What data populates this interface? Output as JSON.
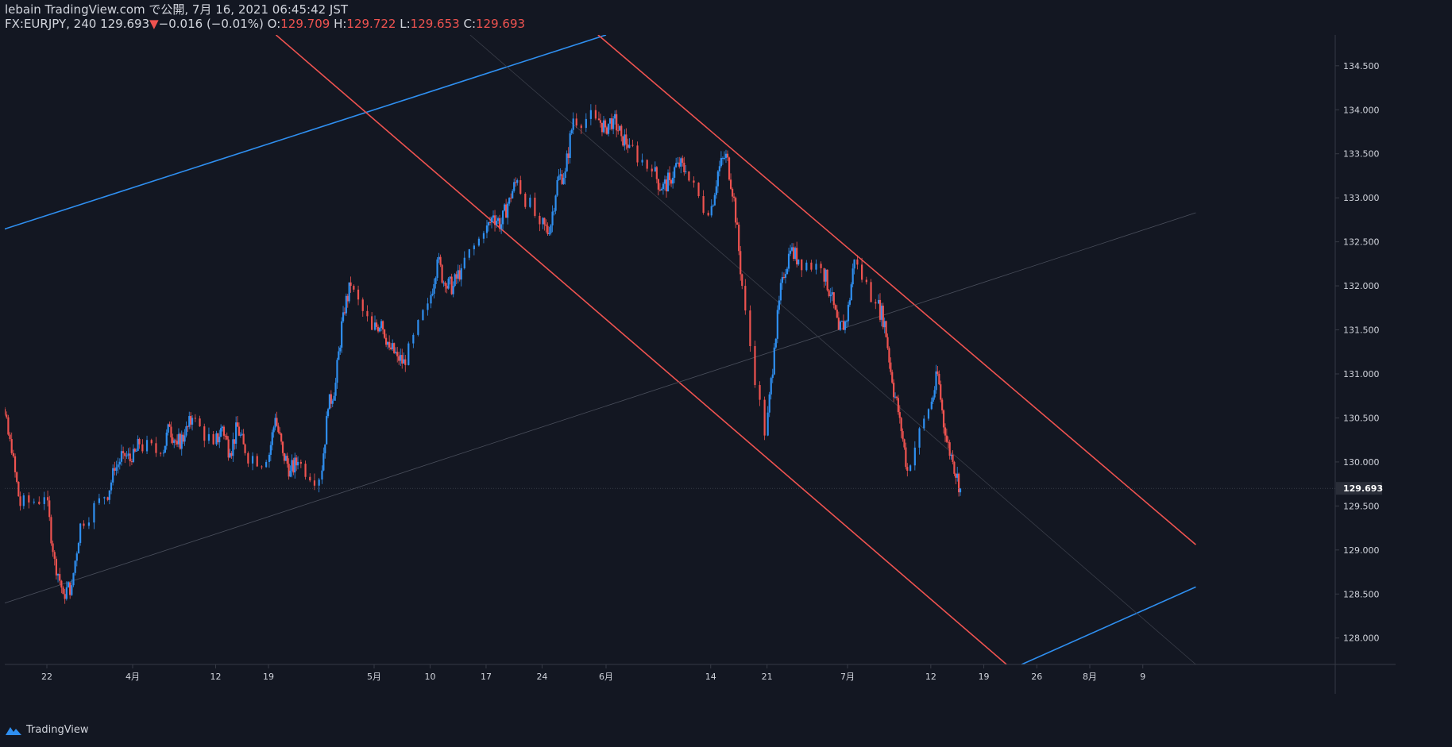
{
  "header": {
    "publish_line": "lebain TradingView.com で公開, 7月 16, 2021 06:45:42 JST",
    "symbol": "FX:EURJPY, 240",
    "last": "129.693",
    "change_arrow": "▼",
    "change": "−0.016 (−0.01%)",
    "o_label": "O:",
    "o_value": "129.709",
    "h_label": "H:",
    "h_value": "129.722",
    "l_label": "L:",
    "l_value": "129.653",
    "c_label": "C:",
    "c_value": "129.693"
  },
  "footer": {
    "brand": "TradingView"
  },
  "colors": {
    "background": "#131722",
    "up": "#2f8ff0",
    "down": "#ef5350",
    "grid_text": "#d1d4dc",
    "axis_line": "#363a45"
  },
  "chart_data": {
    "type": "candlestick",
    "symbol": "FX:EURJPY",
    "timeframe": "240",
    "y_axis": {
      "ticks": [
        128.0,
        128.5,
        129.0,
        129.5,
        130.0,
        130.5,
        131.0,
        131.5,
        132.0,
        132.5,
        133.0,
        133.5,
        134.0,
        134.5
      ],
      "tick_labels": [
        "128.000",
        "128.500",
        "129.000",
        "129.500",
        "130.000",
        "130.500",
        "131.000",
        "131.500",
        "132.000",
        "132.500",
        "133.000",
        "133.500",
        "134.000",
        "134.500"
      ],
      "range": [
        127.7,
        134.85
      ],
      "last_price_label": "129.693"
    },
    "x_axis": {
      "ticks": [
        {
          "label": "22",
          "date": "2021-03-22"
        },
        {
          "label": "4月",
          "date": "2021-04-01"
        },
        {
          "label": "12",
          "date": "2021-04-12"
        },
        {
          "label": "19",
          "date": "2021-04-19"
        },
        {
          "label": "5月",
          "date": "2021-05-03"
        },
        {
          "label": "10",
          "date": "2021-05-10"
        },
        {
          "label": "17",
          "date": "2021-05-17"
        },
        {
          "label": "24",
          "date": "2021-05-24"
        },
        {
          "label": "6月",
          "date": "2021-06-01"
        },
        {
          "label": "14",
          "date": "2021-06-14"
        },
        {
          "label": "21",
          "date": "2021-06-21"
        },
        {
          "label": "7月",
          "date": "2021-07-01"
        },
        {
          "label": "12",
          "date": "2021-07-12"
        },
        {
          "label": "19",
          "date": "2021-07-19"
        },
        {
          "label": "26",
          "date": "2021-07-26"
        },
        {
          "label": "8月",
          "date": "2021-08-02"
        },
        {
          "label": "9",
          "date": "2021-08-09"
        }
      ]
    },
    "price_path": [
      {
        "date": "2021-03-15",
        "close": 130.3
      },
      {
        "date": "2021-03-16",
        "close": 129.8
      },
      {
        "date": "2021-03-17",
        "close": 130.6
      },
      {
        "date": "2021-03-18",
        "close": 130.1
      },
      {
        "date": "2021-03-19",
        "close": 129.5
      },
      {
        "date": "2021-03-22",
        "close": 129.6
      },
      {
        "date": "2021-03-23",
        "close": 128.9
      },
      {
        "date": "2021-03-24",
        "close": 128.5
      },
      {
        "date": "2021-03-25",
        "close": 128.6
      },
      {
        "date": "2021-03-26",
        "close": 129.3
      },
      {
        "date": "2021-03-29",
        "close": 129.6
      },
      {
        "date": "2021-03-30",
        "close": 129.9
      },
      {
        "date": "2021-03-31",
        "close": 130.1
      },
      {
        "date": "2021-04-01",
        "close": 130.0
      },
      {
        "date": "2021-04-02",
        "close": 130.2
      },
      {
        "date": "2021-04-05",
        "close": 130.1
      },
      {
        "date": "2021-04-06",
        "close": 130.4
      },
      {
        "date": "2021-04-07",
        "close": 130.2
      },
      {
        "date": "2021-04-08",
        "close": 130.3
      },
      {
        "date": "2021-04-09",
        "close": 130.5
      },
      {
        "date": "2021-04-12",
        "close": 130.2
      },
      {
        "date": "2021-04-13",
        "close": 130.4
      },
      {
        "date": "2021-04-14",
        "close": 130.1
      },
      {
        "date": "2021-04-15",
        "close": 130.4
      },
      {
        "date": "2021-04-16",
        "close": 130.1
      },
      {
        "date": "2021-04-19",
        "close": 130.0
      },
      {
        "date": "2021-04-20",
        "close": 130.5
      },
      {
        "date": "2021-04-21",
        "close": 130.1
      },
      {
        "date": "2021-04-22",
        "close": 129.9
      },
      {
        "date": "2021-04-23",
        "close": 130.0
      },
      {
        "date": "2021-04-26",
        "close": 129.8
      },
      {
        "date": "2021-04-27",
        "close": 130.6
      },
      {
        "date": "2021-04-28",
        "close": 130.9
      },
      {
        "date": "2021-04-29",
        "close": 131.7
      },
      {
        "date": "2021-04-30",
        "close": 132.0
      },
      {
        "date": "2021-05-03",
        "close": 131.5
      },
      {
        "date": "2021-05-04",
        "close": 131.6
      },
      {
        "date": "2021-05-05",
        "close": 131.3
      },
      {
        "date": "2021-05-06",
        "close": 131.2
      },
      {
        "date": "2021-05-07",
        "close": 131.1
      },
      {
        "date": "2021-05-10",
        "close": 131.8
      },
      {
        "date": "2021-05-11",
        "close": 132.3
      },
      {
        "date": "2021-05-12",
        "close": 132.0
      },
      {
        "date": "2021-05-13",
        "close": 132.0
      },
      {
        "date": "2021-05-14",
        "close": 132.2
      },
      {
        "date": "2021-05-17",
        "close": 132.6
      },
      {
        "date": "2021-05-18",
        "close": 132.8
      },
      {
        "date": "2021-05-19",
        "close": 132.7
      },
      {
        "date": "2021-05-20",
        "close": 133.0
      },
      {
        "date": "2021-05-21",
        "close": 133.2
      },
      {
        "date": "2021-05-24",
        "close": 132.7
      },
      {
        "date": "2021-05-25",
        "close": 132.6
      },
      {
        "date": "2021-05-26",
        "close": 133.2
      },
      {
        "date": "2021-05-27",
        "close": 133.3
      },
      {
        "date": "2021-05-28",
        "close": 133.9
      },
      {
        "date": "2021-05-31",
        "close": 133.9
      },
      {
        "date": "2021-06-01",
        "close": 133.8
      },
      {
        "date": "2021-06-02",
        "close": 133.9
      },
      {
        "date": "2021-06-03",
        "close": 133.7
      },
      {
        "date": "2021-06-04",
        "close": 133.6
      },
      {
        "date": "2021-06-07",
        "close": 133.3
      },
      {
        "date": "2021-06-08",
        "close": 133.1
      },
      {
        "date": "2021-06-09",
        "close": 133.2
      },
      {
        "date": "2021-06-10",
        "close": 133.4
      },
      {
        "date": "2021-06-11",
        "close": 133.3
      },
      {
        "date": "2021-06-14",
        "close": 132.8
      },
      {
        "date": "2021-06-15",
        "close": 133.3
      },
      {
        "date": "2021-06-16",
        "close": 133.5
      },
      {
        "date": "2021-06-17",
        "close": 133.0
      },
      {
        "date": "2021-06-18",
        "close": 132.0
      },
      {
        "date": "2021-06-21",
        "close": 130.3
      },
      {
        "date": "2021-06-22",
        "close": 131.3
      },
      {
        "date": "2021-06-23",
        "close": 132.1
      },
      {
        "date": "2021-06-24",
        "close": 132.4
      },
      {
        "date": "2021-06-25",
        "close": 132.3
      },
      {
        "date": "2021-06-28",
        "close": 132.2
      },
      {
        "date": "2021-06-29",
        "close": 131.9
      },
      {
        "date": "2021-06-30",
        "close": 131.5
      },
      {
        "date": "2021-07-01",
        "close": 131.6
      },
      {
        "date": "2021-07-02",
        "close": 132.3
      },
      {
        "date": "2021-07-05",
        "close": 131.8
      },
      {
        "date": "2021-07-06",
        "close": 131.6
      },
      {
        "date": "2021-07-07",
        "close": 130.9
      },
      {
        "date": "2021-07-08",
        "close": 130.5
      },
      {
        "date": "2021-07-09",
        "close": 129.9
      },
      {
        "date": "2021-07-12",
        "close": 130.6
      },
      {
        "date": "2021-07-13",
        "close": 131.0
      },
      {
        "date": "2021-07-14",
        "close": 130.3
      },
      {
        "date": "2021-07-15",
        "close": 130.0
      },
      {
        "date": "2021-07-16",
        "close": 129.7
      }
    ],
    "trendlines": [
      {
        "name": "",
        "color": "#2f8ff0",
        "from": {
          "date": "2021-03-15",
          "price": 132.58
        },
        "to": {
          "date": "2021-06-01",
          "price": 134.85
        }
      },
      {
        "name": "",
        "color": "#2f8ff0",
        "from": {
          "date": "2021-07-24",
          "price": 127.7
        },
        "to": {
          "date": "2021-08-16",
          "price": 128.58
        }
      },
      {
        "name": "",
        "color": "#ef5350",
        "from": {
          "date": "2021-04-20",
          "price": 134.85
        },
        "to": {
          "date": "2021-07-22",
          "price": 127.7
        }
      },
      {
        "name": "",
        "color": "#ef5350",
        "from": {
          "date": "2021-05-31",
          "price": 134.85
        },
        "to": {
          "date": "2021-08-16",
          "price": 129.06
        }
      },
      {
        "name": "",
        "color": "#4a4f5c",
        "from": {
          "date": "2021-03-15",
          "price": 128.33
        },
        "to": {
          "date": "2021-08-16",
          "price": 132.83
        }
      },
      {
        "name": "",
        "color": "#3a3e49",
        "from": {
          "date": "2021-05-15",
          "price": 134.85
        },
        "to": {
          "date": "2021-08-16",
          "price": 127.7
        }
      }
    ]
  }
}
